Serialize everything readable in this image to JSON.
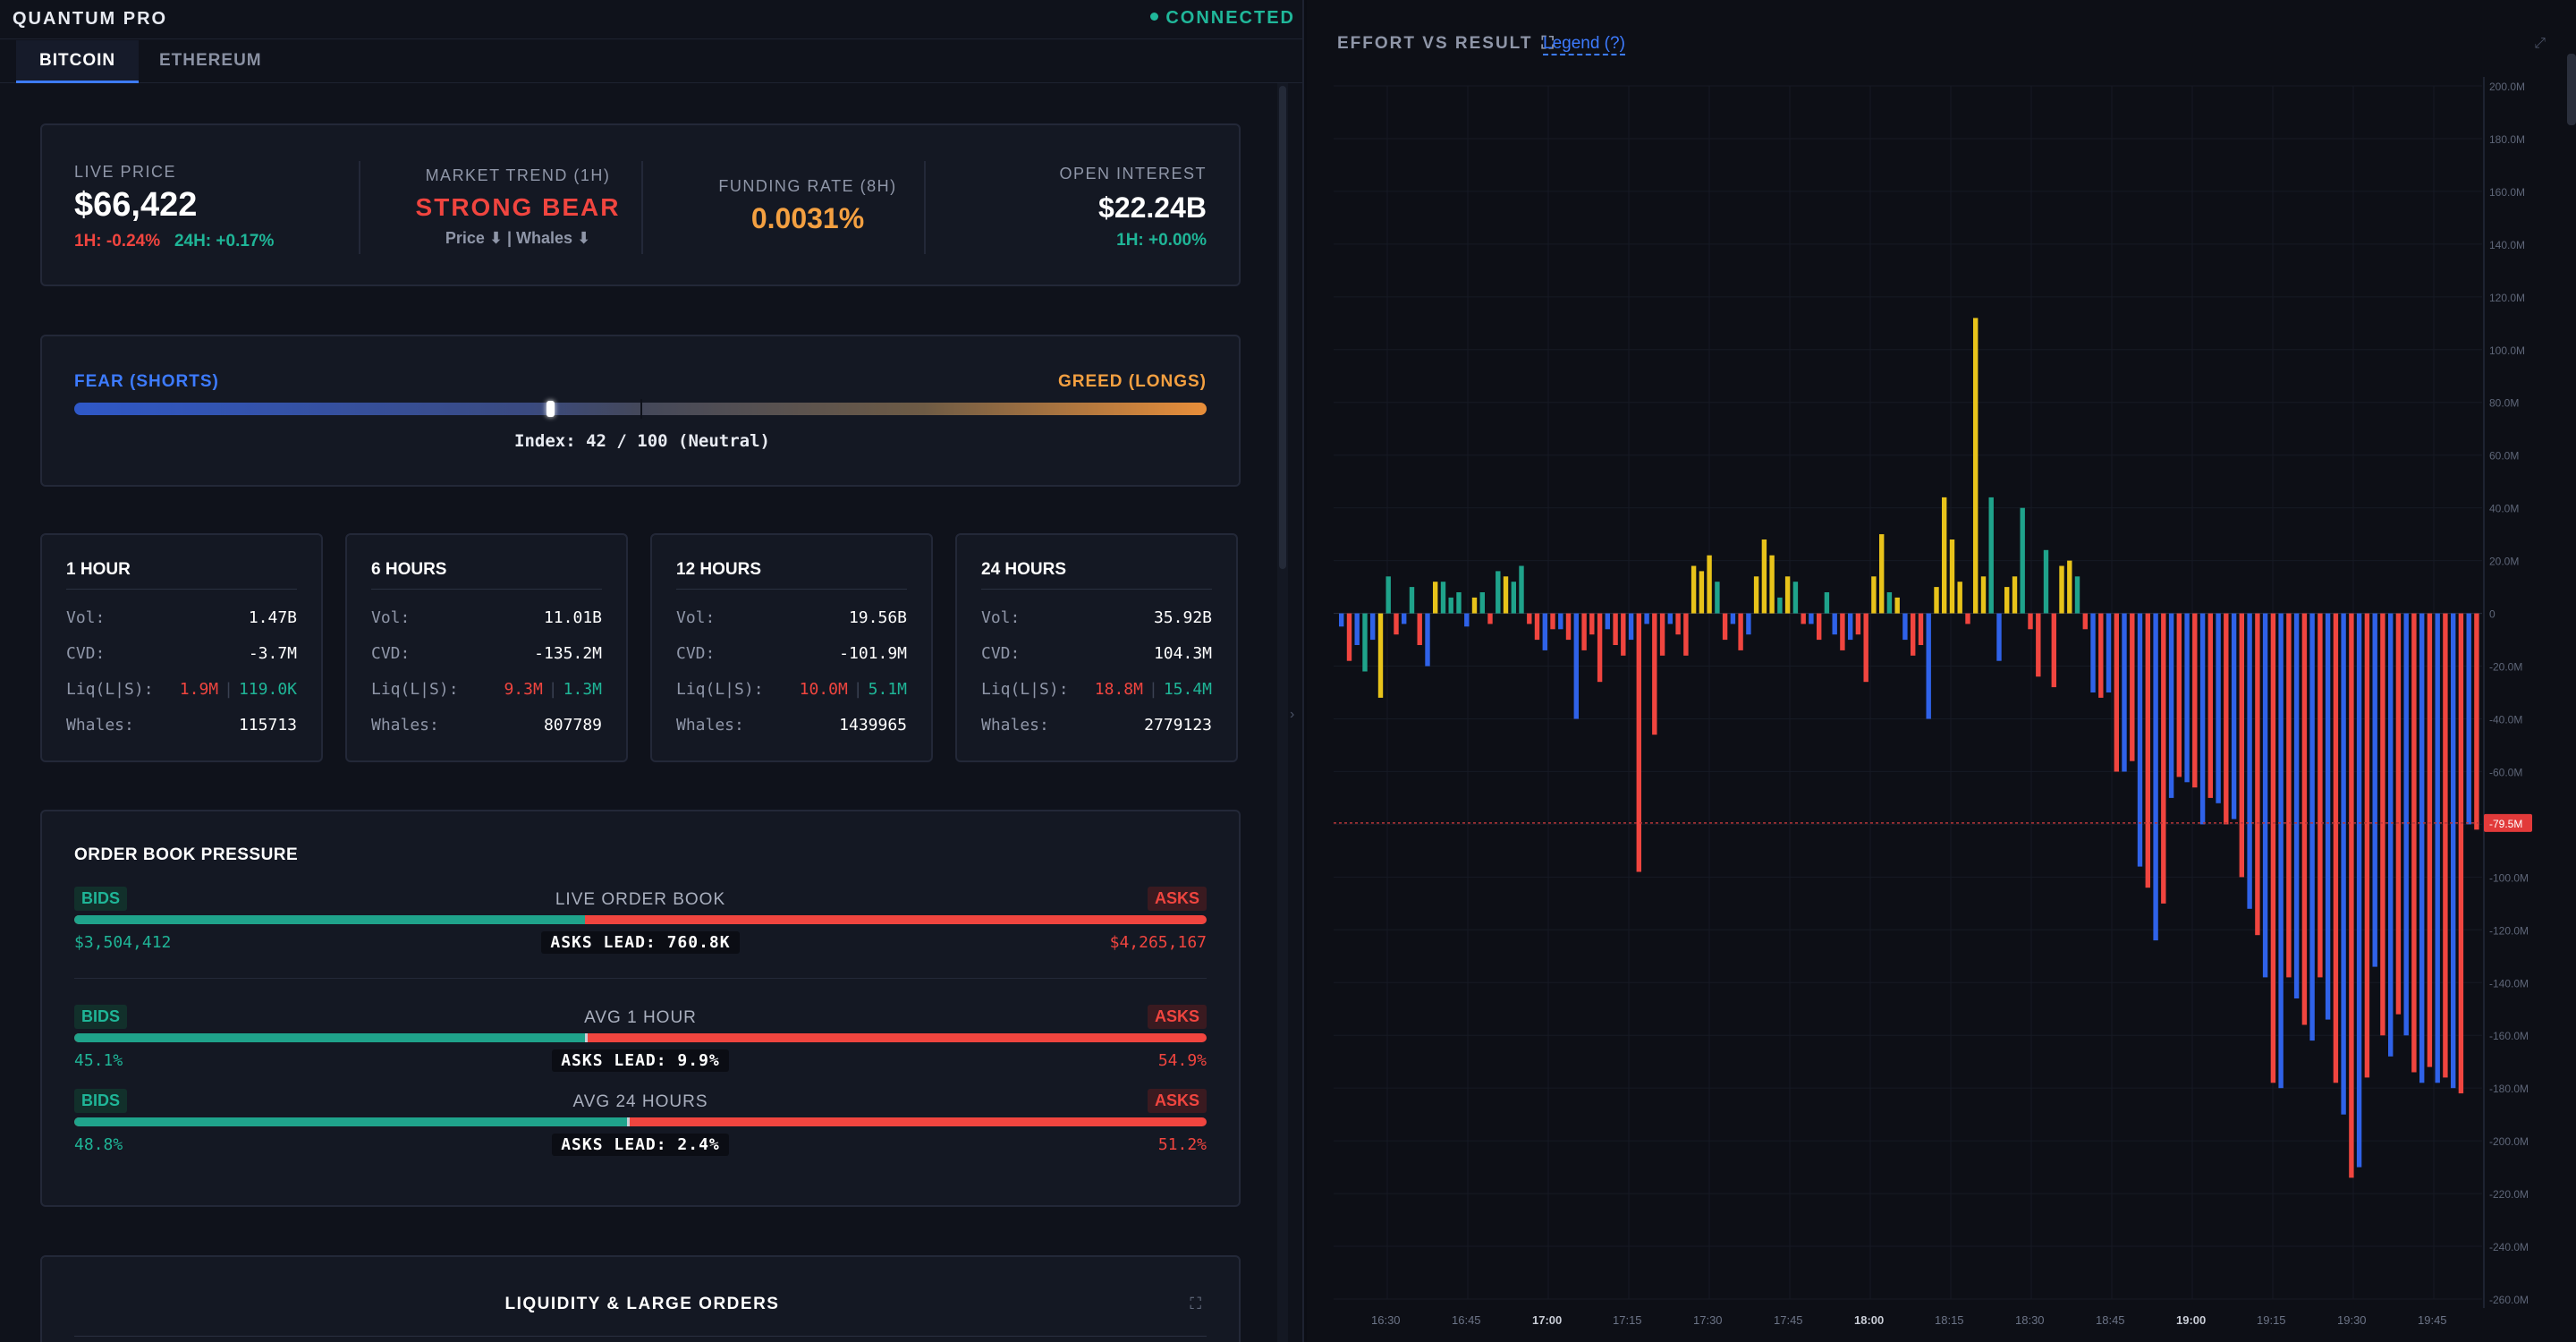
{
  "app": {
    "title": "QUANTUM PRO",
    "status": "CONNECTED"
  },
  "tabs": [
    {
      "label": "BITCOIN"
    },
    {
      "label": "ETHEREUM"
    }
  ],
  "stats": {
    "live_price_label": "LIVE PRICE",
    "live_price": "$66,422",
    "chg_1h": "1H: -0.24%",
    "chg_24h": "24H: +0.17%",
    "trend_label": "MARKET TREND (1H)",
    "trend_value": "STRONG BEAR",
    "trend_sub": "Price ⬇ | Whales ⬇",
    "funding_label": "FUNDING RATE (8H)",
    "funding_value": "0.0031%",
    "oi_label": "OPEN INTEREST",
    "oi_value": "$22.24B",
    "oi_chg": "1H: +0.00%"
  },
  "fear_greed": {
    "fear_label": "FEAR (SHORTS)",
    "greed_label": "GREED (LONGS)",
    "index_text": "Index: 42 / 100 (Neutral)",
    "index": 42
  },
  "windows": [
    {
      "title": "1 HOUR",
      "vol": "1.47B",
      "cvd": "-3.7M",
      "liq_l": "1.9M",
      "liq_s": "119.0K",
      "whales": "115713"
    },
    {
      "title": "6 HOURS",
      "vol": "11.01B",
      "cvd": "-135.2M",
      "liq_l": "9.3M",
      "liq_s": "1.3M",
      "whales": "807789"
    },
    {
      "title": "12 HOURS",
      "vol": "19.56B",
      "cvd": "-101.9M",
      "liq_l": "10.0M",
      "liq_s": "5.1M",
      "whales": "1439965"
    },
    {
      "title": "24 HOURS",
      "vol": "35.92B",
      "cvd": "104.3M",
      "liq_l": "18.8M",
      "liq_s": "15.4M",
      "whales": "2779123"
    }
  ],
  "window_labels": {
    "vol": "Vol:",
    "cvd": "CVD:",
    "liq": "Liq(L|S):",
    "whales": "Whales:",
    "sep": "|"
  },
  "order_book": {
    "title": "ORDER BOOK PRESSURE",
    "bids_tag": "BIDS",
    "asks_tag": "ASKS",
    "sections": [
      {
        "label": "LIVE ORDER BOOK",
        "left": "$3,504,412",
        "right": "$4,265,167",
        "lead": "ASKS LEAD: 760.8K",
        "bid_fraction": 0.451
      },
      {
        "label": "AVG 1 HOUR",
        "left": "45.1%",
        "right": "54.9%",
        "lead": "ASKS LEAD: 9.9%",
        "bid_fraction": 0.451
      },
      {
        "label": "AVG 24 HOURS",
        "left": "48.8%",
        "right": "51.2%",
        "lead": "ASKS LEAD: 2.4%",
        "bid_fraction": 0.488
      }
    ]
  },
  "liquidity": {
    "title": "LIQUIDITY & LARGE ORDERS"
  },
  "chart": {
    "title": "EFFORT VS RESULT",
    "legend_link": "Legend (?)",
    "price_marker": "-79.5M"
  },
  "chart_data": {
    "type": "bar",
    "title": "EFFORT VS RESULT",
    "ylim": [
      -260,
      200
    ],
    "y_unit": "M",
    "y_ticks": [
      "200.0M",
      "180.0M",
      "160.0M",
      "140.0M",
      "120.0M",
      "100.0M",
      "80.0M",
      "60.0M",
      "40.0M",
      "20.0M",
      "0",
      "-20.0M",
      "-40.0M",
      "-60.0M",
      "-80.0M",
      "-100.0M",
      "-120.0M",
      "-140.0M",
      "-160.0M",
      "-180.0M",
      "-200.0M",
      "-220.0M",
      "-240.0M",
      "-260.0M"
    ],
    "y_tick_values": [
      200,
      180,
      160,
      140,
      120,
      100,
      80,
      60,
      40,
      20,
      0,
      -20,
      -40,
      -60,
      -80,
      -100,
      -120,
      -140,
      -160,
      -180,
      -200,
      -220,
      -240,
      -260
    ],
    "x_ticks": [
      "16:30",
      "16:45",
      "17:00",
      "17:15",
      "17:30",
      "17:45",
      "18:00",
      "18:15",
      "18:30",
      "18:45",
      "19:00",
      "19:15",
      "19:30",
      "19:45"
    ],
    "x_ticks_bold": [
      "17:00",
      "18:00",
      "19:00"
    ],
    "reference_line": -79.5,
    "series": [
      {
        "name": "positive-yellow",
        "color": "#e8c31a"
      },
      {
        "name": "positive-teal",
        "color": "#1fa38b"
      },
      {
        "name": "negative-red",
        "color": "#f0453f"
      },
      {
        "name": "negative-blue",
        "color": "#2f62e8"
      }
    ],
    "bars": [
      [
        -5,
        8
      ],
      [
        -18,
        5
      ],
      [
        -12,
        8
      ],
      [
        -22,
        4
      ],
      [
        -10,
        6
      ],
      [
        -32,
        3
      ],
      [
        14,
        2
      ],
      [
        -8,
        5
      ],
      [
        -4,
        6
      ],
      [
        10,
        2
      ],
      [
        -12,
        5
      ],
      [
        -20,
        8
      ],
      [
        12,
        1
      ],
      [
        12,
        2
      ],
      [
        6,
        2
      ],
      [
        8,
        2
      ],
      [
        -5,
        6
      ],
      [
        6,
        1
      ],
      [
        8,
        2
      ],
      [
        -4,
        5
      ],
      [
        16,
        2
      ],
      [
        14,
        1
      ],
      [
        12,
        2
      ],
      [
        18,
        2
      ],
      [
        -4,
        5
      ],
      [
        -10,
        5
      ],
      [
        -14,
        6
      ],
      [
        -6,
        5
      ],
      [
        -6,
        6
      ],
      [
        -10,
        5
      ],
      [
        -40,
        6
      ],
      [
        -14,
        5
      ],
      [
        -8,
        5
      ],
      [
        -26,
        5
      ],
      [
        -6,
        6
      ],
      [
        -12,
        5
      ],
      [
        -16,
        5
      ],
      [
        -10,
        6
      ],
      [
        -98,
        5
      ],
      [
        -4,
        6
      ],
      [
        -46,
        5
      ],
      [
        -16,
        5
      ],
      [
        -4,
        6
      ],
      [
        -8,
        5
      ],
      [
        -16,
        5
      ],
      [
        18,
        1
      ],
      [
        16,
        1
      ],
      [
        22,
        1
      ],
      [
        12,
        2
      ],
      [
        -10,
        5
      ],
      [
        -4,
        6
      ],
      [
        -14,
        5
      ],
      [
        -8,
        6
      ],
      [
        14,
        1
      ],
      [
        28,
        1
      ],
      [
        22,
        1
      ],
      [
        6,
        2
      ],
      [
        14,
        1
      ],
      [
        12,
        2
      ],
      [
        -4,
        5
      ],
      [
        -4,
        6
      ],
      [
        -10,
        5
      ],
      [
        8,
        2
      ],
      [
        -8,
        6
      ],
      [
        -14,
        5
      ],
      [
        -10,
        6
      ],
      [
        -8,
        5
      ],
      [
        -26,
        5
      ],
      [
        14,
        1
      ],
      [
        30,
        1
      ],
      [
        8,
        2
      ],
      [
        6,
        1
      ],
      [
        -10,
        6
      ],
      [
        -16,
        5
      ],
      [
        -12,
        5
      ],
      [
        -40,
        6
      ],
      [
        10,
        1
      ],
      [
        44,
        1
      ],
      [
        28,
        1
      ],
      [
        12,
        1
      ],
      [
        -4,
        5
      ],
      [
        112,
        1
      ],
      [
        14,
        1
      ],
      [
        44,
        2
      ],
      [
        -18,
        6
      ],
      [
        10,
        1
      ],
      [
        14,
        1
      ],
      [
        40,
        2
      ],
      [
        -6,
        5
      ],
      [
        -24,
        5
      ],
      [
        24,
        2
      ],
      [
        -28,
        5
      ],
      [
        18,
        1
      ],
      [
        20,
        1
      ],
      [
        14,
        2
      ],
      [
        -6,
        5
      ],
      [
        -30,
        6
      ],
      [
        -32,
        5
      ],
      [
        -30,
        6
      ],
      [
        -60,
        5
      ],
      [
        -60,
        6
      ],
      [
        -56,
        5
      ],
      [
        -96,
        6
      ],
      [
        -104,
        5
      ],
      [
        -124,
        6
      ],
      [
        -110,
        5
      ],
      [
        -70,
        6
      ],
      [
        -62,
        5
      ],
      [
        -64,
        6
      ],
      [
        -66,
        5
      ],
      [
        -80,
        6
      ],
      [
        -70,
        5
      ],
      [
        -72,
        6
      ],
      [
        -80,
        5
      ],
      [
        -78,
        6
      ],
      [
        -100,
        5
      ],
      [
        -112,
        6
      ],
      [
        -122,
        5
      ],
      [
        -138,
        6
      ],
      [
        -178,
        5
      ],
      [
        -180,
        6
      ],
      [
        -138,
        5
      ],
      [
        -146,
        6
      ],
      [
        -156,
        5
      ],
      [
        -162,
        6
      ],
      [
        -138,
        5
      ],
      [
        -154,
        6
      ],
      [
        -178,
        5
      ],
      [
        -190,
        6
      ],
      [
        -214,
        5
      ],
      [
        -210,
        6
      ],
      [
        -176,
        5
      ],
      [
        -134,
        6
      ],
      [
        -160,
        5
      ],
      [
        -168,
        6
      ],
      [
        -152,
        5
      ],
      [
        -160,
        6
      ],
      [
        -174,
        5
      ],
      [
        -178,
        6
      ],
      [
        -172,
        5
      ],
      [
        -178,
        6
      ],
      [
        -176,
        5
      ],
      [
        -180,
        6
      ],
      [
        -182,
        5
      ],
      [
        -80,
        6
      ],
      [
        -82,
        5
      ]
    ],
    "bar_note": "each bar: [value in M, colorIndex] where 1=yellow,2=teal,5=red,6=blue,3/4/8 shades"
  }
}
